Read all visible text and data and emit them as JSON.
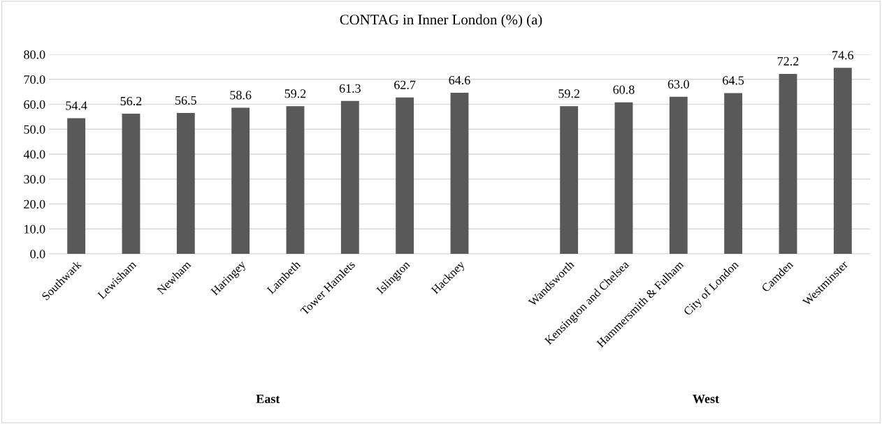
{
  "chart_data": {
    "type": "bar",
    "title": "CONTAG in Inner London (%) (a)",
    "categories": [
      "Southwark",
      "Lewisham",
      "Newham",
      "Haringey",
      "Lambeth",
      "Tower Hamlets",
      "Islington",
      "Hackney",
      null,
      "Wandsworth",
      "Kensington and Chelsea",
      "Hammersmith & Fulham",
      "City of London",
      "Camden",
      "Westminster"
    ],
    "values": [
      54.4,
      56.2,
      56.5,
      58.6,
      59.2,
      61.3,
      62.7,
      64.6,
      null,
      59.2,
      60.8,
      63.0,
      64.5,
      72.2,
      74.6
    ],
    "value_labels": [
      "54.4",
      "56.2",
      "56.5",
      "58.6",
      "59.2",
      "61.3",
      "62.7",
      "64.6",
      null,
      "59.2",
      "60.8",
      "63.0",
      "64.5",
      "72.2",
      "74.6"
    ],
    "color": "#595959",
    "ylim": [
      0,
      80
    ],
    "yticks": [
      {
        "value": 0,
        "label": "0.0"
      },
      {
        "value": 10,
        "label": "10.0"
      },
      {
        "value": 20,
        "label": "20.0"
      },
      {
        "value": 30,
        "label": "30.0"
      },
      {
        "value": 40,
        "label": "40.0"
      },
      {
        "value": 50,
        "label": "50.0"
      },
      {
        "value": 60,
        "label": "60.0"
      },
      {
        "value": 70,
        "label": "70.0"
      },
      {
        "value": 80,
        "label": "80.0"
      }
    ],
    "grid": "y",
    "annotations": [
      "East",
      "West"
    ]
  }
}
